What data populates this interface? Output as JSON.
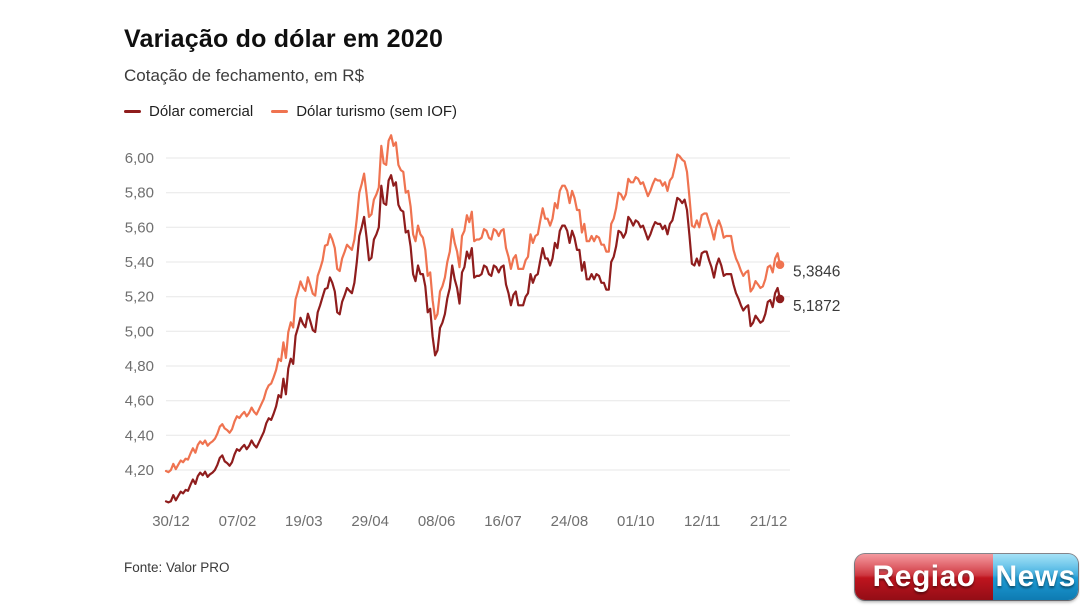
{
  "header": {
    "title": "Variação do dólar em 2020",
    "subtitle": "Cotação de fechamento, em R$"
  },
  "footer": {
    "source": "Fonte: Valor PRO"
  },
  "logo": {
    "part1": "Regiao",
    "part2": "News",
    "red": "#c3151f",
    "blue": "#1f9ed8"
  },
  "colors": {
    "comercial": "#8f1d1d",
    "turismo": "#ef7350",
    "grid": "#e7e7e7",
    "axis_text": "#6f6f6f",
    "annotation_text": "#3b3b3b"
  },
  "chart_data": {
    "type": "line",
    "title": "Variação do dólar em 2020",
    "subtitle": "Cotação de fechamento, em R$",
    "xlabel": "",
    "ylabel": "R$",
    "ylim": [
      4.0,
      6.15
    ],
    "grid": true,
    "legend_position": "top-left",
    "x_ticks": [
      "30/12",
      "07/02",
      "19/03",
      "29/04",
      "08/06",
      "16/07",
      "24/08",
      "01/10",
      "12/11",
      "21/12"
    ],
    "y_ticks": [
      {
        "label": "6,00",
        "value": 6.0
      },
      {
        "label": "5,80",
        "value": 5.8
      },
      {
        "label": "5,60",
        "value": 5.6
      },
      {
        "label": "5,40",
        "value": 5.4
      },
      {
        "label": "5,20",
        "value": 5.2
      },
      {
        "label": "5,00",
        "value": 5.0
      },
      {
        "label": "4,80",
        "value": 4.8
      },
      {
        "label": "4,60",
        "value": 4.6
      },
      {
        "label": "4,40",
        "value": 4.4
      },
      {
        "label": "4,20",
        "value": 4.2
      }
    ],
    "series": [
      {
        "name": "Dólar turismo (sem IOF)",
        "color": "#ef7350",
        "end_label": "5,3846",
        "end_value": 5.3846,
        "values": [
          4.194,
          4.188,
          4.2,
          4.235,
          4.205,
          4.23,
          4.255,
          4.245,
          4.265,
          4.26,
          4.295,
          4.325,
          4.3,
          4.345,
          4.365,
          4.35,
          4.37,
          4.34,
          4.355,
          4.365,
          4.38,
          4.41,
          4.45,
          4.464,
          4.44,
          4.43,
          4.415,
          4.435,
          4.48,
          4.51,
          4.5,
          4.52,
          4.535,
          4.51,
          4.53,
          4.56,
          4.535,
          4.52,
          4.55,
          4.58,
          4.61,
          4.66,
          4.688,
          4.699,
          4.734,
          4.777,
          4.842,
          4.828,
          4.937,
          4.847,
          4.996,
          5.052,
          5.022,
          5.185,
          5.234,
          5.288,
          5.253,
          5.234,
          5.312,
          5.268,
          5.217,
          5.206,
          5.32,
          5.36,
          5.409,
          5.494,
          5.5,
          5.561,
          5.53,
          5.48,
          5.36,
          5.348,
          5.42,
          5.458,
          5.5,
          5.484,
          5.47,
          5.53,
          5.65,
          5.8,
          5.85,
          5.91,
          5.79,
          5.66,
          5.675,
          5.76,
          5.79,
          5.83,
          6.07,
          5.97,
          5.96,
          6.1,
          6.131,
          6.07,
          6.09,
          5.96,
          5.93,
          5.92,
          5.8,
          5.81,
          5.72,
          5.56,
          5.52,
          5.61,
          5.56,
          5.54,
          5.47,
          5.32,
          5.34,
          5.18,
          5.071,
          5.1,
          5.23,
          5.26,
          5.31,
          5.4,
          5.46,
          5.59,
          5.51,
          5.46,
          5.37,
          5.55,
          5.58,
          5.67,
          5.63,
          5.69,
          5.52,
          5.53,
          5.53,
          5.54,
          5.59,
          5.58,
          5.54,
          5.53,
          5.59,
          5.58,
          5.55,
          5.58,
          5.59,
          5.48,
          5.43,
          5.36,
          5.42,
          5.44,
          5.36,
          5.36,
          5.36,
          5.41,
          5.43,
          5.56,
          5.51,
          5.55,
          5.56,
          5.64,
          5.71,
          5.65,
          5.65,
          5.61,
          5.65,
          5.74,
          5.71,
          5.81,
          5.84,
          5.84,
          5.81,
          5.74,
          5.81,
          5.77,
          5.7,
          5.7,
          5.57,
          5.62,
          5.52,
          5.52,
          5.55,
          5.52,
          5.55,
          5.54,
          5.5,
          5.5,
          5.46,
          5.46,
          5.62,
          5.65,
          5.71,
          5.8,
          5.79,
          5.76,
          5.79,
          5.88,
          5.86,
          5.86,
          5.89,
          5.88,
          5.85,
          5.86,
          5.82,
          5.78,
          5.81,
          5.85,
          5.88,
          5.87,
          5.87,
          5.84,
          5.86,
          5.81,
          5.87,
          5.89,
          5.95,
          6.02,
          6.01,
          5.99,
          5.98,
          5.92,
          5.77,
          5.61,
          5.6,
          5.64,
          5.6,
          5.67,
          5.68,
          5.68,
          5.63,
          5.59,
          5.53,
          5.6,
          5.64,
          5.6,
          5.54,
          5.55,
          5.55,
          5.55,
          5.47,
          5.42,
          5.39,
          5.35,
          5.32,
          5.34,
          5.35,
          5.23,
          5.25,
          5.29,
          5.27,
          5.25,
          5.26,
          5.3,
          5.37,
          5.38,
          5.34,
          5.42,
          5.45,
          5.3846
        ]
      },
      {
        "name": "Dólar comercial",
        "color": "#8f1d1d",
        "end_label": "5,1872",
        "end_value": 5.1872,
        "values": [
          4.019,
          4.013,
          4.02,
          4.055,
          4.025,
          4.05,
          4.075,
          4.065,
          4.085,
          4.08,
          4.115,
          4.145,
          4.12,
          4.165,
          4.185,
          4.17,
          4.19,
          4.16,
          4.175,
          4.185,
          4.2,
          4.23,
          4.27,
          4.284,
          4.25,
          4.24,
          4.225,
          4.245,
          4.29,
          4.32,
          4.31,
          4.33,
          4.345,
          4.32,
          4.34,
          4.37,
          4.345,
          4.33,
          4.36,
          4.39,
          4.42,
          4.47,
          4.498,
          4.489,
          4.524,
          4.567,
          4.632,
          4.618,
          4.727,
          4.637,
          4.786,
          4.842,
          4.812,
          4.975,
          5.024,
          5.078,
          5.043,
          5.024,
          5.102,
          5.058,
          5.007,
          4.996,
          5.11,
          5.15,
          5.199,
          5.244,
          5.25,
          5.311,
          5.28,
          5.23,
          5.11,
          5.098,
          5.17,
          5.208,
          5.25,
          5.234,
          5.22,
          5.28,
          5.4,
          5.55,
          5.6,
          5.66,
          5.54,
          5.41,
          5.425,
          5.53,
          5.56,
          5.6,
          5.84,
          5.74,
          5.73,
          5.87,
          5.901,
          5.84,
          5.86,
          5.73,
          5.7,
          5.69,
          5.57,
          5.58,
          5.49,
          5.33,
          5.29,
          5.38,
          5.33,
          5.33,
          5.26,
          5.11,
          5.13,
          4.97,
          4.861,
          4.89,
          5.02,
          5.05,
          5.1,
          5.19,
          5.25,
          5.38,
          5.3,
          5.25,
          5.16,
          5.34,
          5.37,
          5.46,
          5.42,
          5.48,
          5.31,
          5.32,
          5.32,
          5.33,
          5.38,
          5.37,
          5.33,
          5.32,
          5.38,
          5.37,
          5.34,
          5.37,
          5.38,
          5.27,
          5.22,
          5.15,
          5.21,
          5.23,
          5.15,
          5.15,
          5.15,
          5.2,
          5.22,
          5.33,
          5.28,
          5.32,
          5.33,
          5.41,
          5.48,
          5.42,
          5.42,
          5.38,
          5.42,
          5.51,
          5.48,
          5.58,
          5.61,
          5.61,
          5.58,
          5.51,
          5.58,
          5.54,
          5.47,
          5.47,
          5.35,
          5.4,
          5.3,
          5.3,
          5.33,
          5.3,
          5.33,
          5.32,
          5.28,
          5.28,
          5.24,
          5.24,
          5.4,
          5.43,
          5.49,
          5.58,
          5.57,
          5.54,
          5.57,
          5.66,
          5.64,
          5.61,
          5.64,
          5.63,
          5.6,
          5.61,
          5.57,
          5.53,
          5.56,
          5.6,
          5.63,
          5.62,
          5.62,
          5.59,
          5.61,
          5.56,
          5.62,
          5.64,
          5.7,
          5.77,
          5.76,
          5.74,
          5.76,
          5.7,
          5.55,
          5.39,
          5.38,
          5.42,
          5.38,
          5.45,
          5.46,
          5.46,
          5.41,
          5.37,
          5.31,
          5.38,
          5.42,
          5.38,
          5.32,
          5.33,
          5.33,
          5.33,
          5.27,
          5.22,
          5.19,
          5.15,
          5.12,
          5.14,
          5.15,
          5.03,
          5.05,
          5.09,
          5.07,
          5.05,
          5.06,
          5.1,
          5.17,
          5.18,
          5.14,
          5.22,
          5.25,
          5.1872
        ]
      }
    ],
    "legend_order": [
      "Dólar comercial",
      "Dólar turismo (sem IOF)"
    ]
  }
}
